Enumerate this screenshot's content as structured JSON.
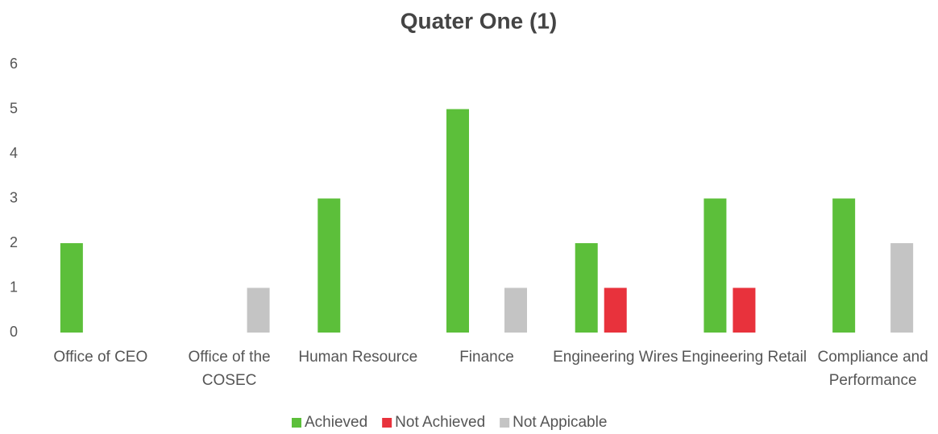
{
  "chart_data": {
    "type": "bar",
    "title": "Quater One (1)",
    "categories": [
      "Office of CEO",
      "Office of the COSEC",
      "Human Resource",
      "Finance",
      "Engineering Wires",
      "Engineering Retail",
      "Compliance and Performance"
    ],
    "series": [
      {
        "name": "Achieved",
        "color": "#5cbf3a",
        "values": [
          2,
          0,
          3,
          5,
          2,
          3,
          3
        ]
      },
      {
        "name": "Not Achieved",
        "color": "#e8323c",
        "values": [
          0,
          0,
          0,
          0,
          1,
          1,
          0
        ]
      },
      {
        "name": "Not Appicable",
        "color": "#c4c4c4",
        "values": [
          0,
          1,
          0,
          1,
          0,
          0,
          2
        ]
      }
    ],
    "ylim": [
      0,
      6
    ],
    "yticks": [
      0,
      1,
      2,
      3,
      4,
      5,
      6
    ],
    "grid": false,
    "legend": "bottom"
  }
}
